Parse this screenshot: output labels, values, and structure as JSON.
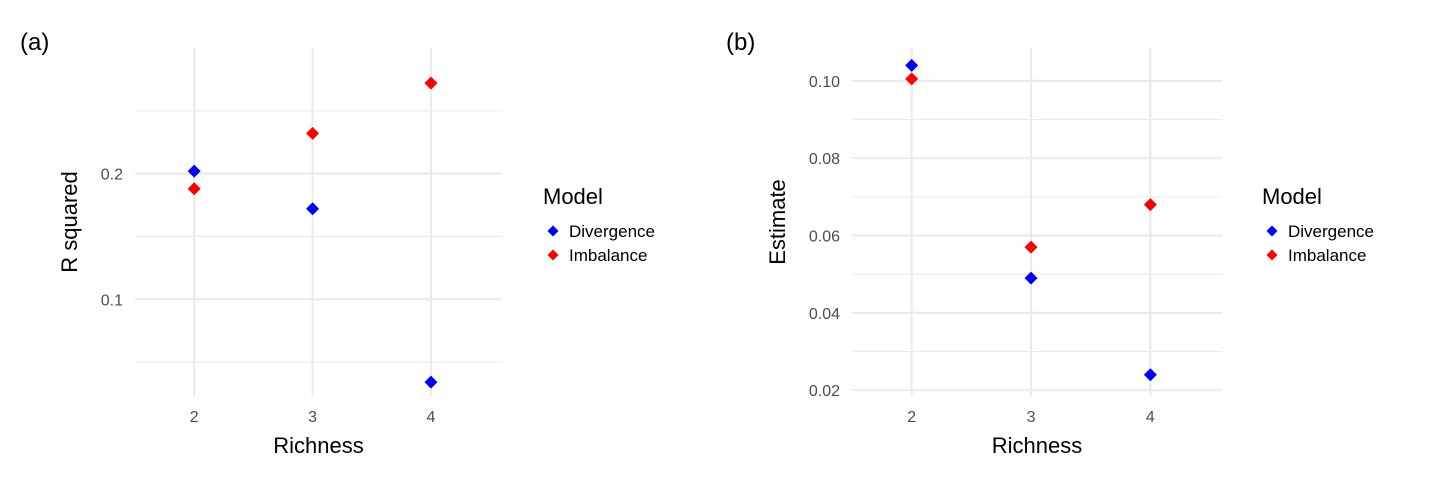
{
  "chart_data": [
    {
      "type": "scatter",
      "panel_label": "(a)",
      "xlabel": "Richness",
      "ylabel": "R squared",
      "x_ticks": [
        2,
        3,
        4
      ],
      "x_tick_labels": [
        "2",
        "3",
        "4"
      ],
      "xlim": [
        1.5,
        4.6
      ],
      "y_ticks": [
        0.1,
        0.2
      ],
      "y_tick_labels": [
        "0.1",
        "0.2"
      ],
      "y_minor_ticks": [
        0.05,
        0.15,
        0.25
      ],
      "ylim": [
        0.023,
        0.3
      ],
      "grid": true,
      "legend": {
        "title": "Model",
        "placement": "right"
      },
      "series": [
        {
          "name": "Divergence",
          "color": "#0000ff",
          "x": [
            2,
            3,
            4
          ],
          "y": [
            0.202,
            0.172,
            0.034
          ]
        },
        {
          "name": "Imbalance",
          "color": "#ff0000",
          "x": [
            2,
            3,
            4
          ],
          "y": [
            0.188,
            0.232,
            0.272
          ]
        }
      ]
    },
    {
      "type": "scatter",
      "panel_label": "(b)",
      "xlabel": "Richness",
      "ylabel": "Estimate",
      "x_ticks": [
        2,
        3,
        4
      ],
      "x_tick_labels": [
        "2",
        "3",
        "4"
      ],
      "xlim": [
        1.5,
        4.6
      ],
      "y_ticks": [
        0.02,
        0.04,
        0.06,
        0.08,
        0.1
      ],
      "y_tick_labels": [
        "0.02",
        "0.04",
        "0.06",
        "0.08",
        "0.10"
      ],
      "y_minor_ticks": [
        0.03,
        0.05,
        0.07,
        0.09
      ],
      "ylim": [
        0.0185,
        0.1085
      ],
      "grid": true,
      "legend": {
        "title": "Model",
        "placement": "right"
      },
      "series": [
        {
          "name": "Divergence",
          "color": "#0000ff",
          "x": [
            2,
            3,
            4
          ],
          "y": [
            0.104,
            0.049,
            0.024
          ]
        },
        {
          "name": "Imbalance",
          "color": "#ff0000",
          "x": [
            2,
            3,
            4
          ],
          "y": [
            0.1005,
            0.057,
            0.068
          ]
        }
      ]
    }
  ]
}
